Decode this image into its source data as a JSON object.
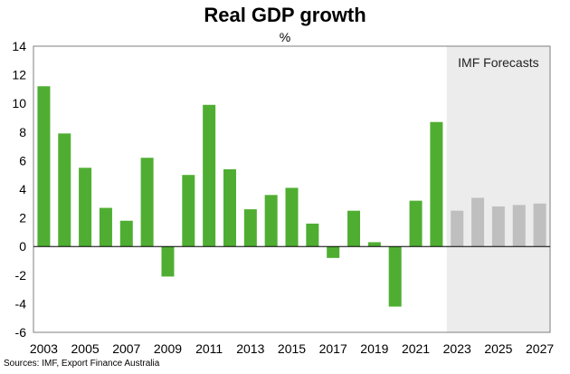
{
  "chart_data": {
    "type": "bar",
    "title": "Real GDP growth",
    "unit_label": "%",
    "years": [
      2003,
      2004,
      2005,
      2006,
      2007,
      2008,
      2009,
      2010,
      2011,
      2012,
      2013,
      2014,
      2015,
      2016,
      2017,
      2018,
      2019,
      2020,
      2021,
      2022,
      2023,
      2024,
      2025,
      2026,
      2027
    ],
    "values": [
      11.2,
      7.9,
      5.5,
      2.7,
      1.8,
      6.2,
      -2.1,
      5.0,
      9.9,
      5.4,
      2.6,
      3.6,
      4.1,
      1.6,
      -0.8,
      2.5,
      0.3,
      -4.2,
      3.2,
      8.7,
      2.5,
      3.4,
      2.8,
      2.9,
      3.0
    ],
    "forecast_from": 2023,
    "forecast_label": "IMF Forecasts",
    "x_tick_labels": [
      "2003",
      "2005",
      "2007",
      "2009",
      "2011",
      "2013",
      "2015",
      "2017",
      "2019",
      "2021",
      "2023",
      "2025",
      "2027"
    ],
    "y_tick_labels": [
      "14",
      "12",
      "10",
      "8",
      "6",
      "4",
      "2",
      "0",
      "-2",
      "-4",
      "-6"
    ],
    "ylim": [
      -6,
      14
    ],
    "y_step": 2,
    "grid": false,
    "colors": {
      "actual": "#4fae32",
      "forecast": "#bfbfbf",
      "forecast_band": "#ececec",
      "axis": "#000000",
      "frame": "#7f7f7f"
    }
  },
  "source": "Sources: IMF, Export Finance Australia"
}
